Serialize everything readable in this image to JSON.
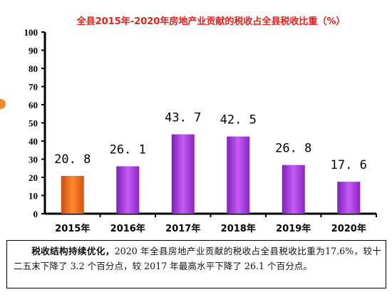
{
  "chart_data": {
    "type": "bar",
    "title": "全县2015年-2020年房地产业贡献的税收占全县税收比重（%）",
    "categories": [
      "2015年",
      "2016年",
      "2017年",
      "2018年",
      "2019年",
      "2020年"
    ],
    "values": [
      20.8,
      26.1,
      43.7,
      42.5,
      26.8,
      17.6
    ],
    "value_labels": [
      "20. 8",
      "26. 1",
      "43. 7",
      "42. 5",
      "26. 8",
      "17. 6"
    ],
    "xlabel": "",
    "ylabel": "",
    "ylim": [
      0,
      100
    ],
    "yticks": [
      0,
      10,
      20,
      30,
      40,
      50,
      60,
      70,
      80,
      90,
      100
    ],
    "grid": false,
    "colors": {
      "highlight_bar": "#f06a1e",
      "bar": "#a53ee0",
      "title": "#e8201c"
    }
  },
  "note": {
    "lead": "税收结构持续优化，",
    "body": "2020 年全县房地产业贡献的税收占全县税收比重为17.6%，较十二五末下降了 3.2 个百分点，较 2017 年最高水平下降了 26.1 个百分点。"
  }
}
